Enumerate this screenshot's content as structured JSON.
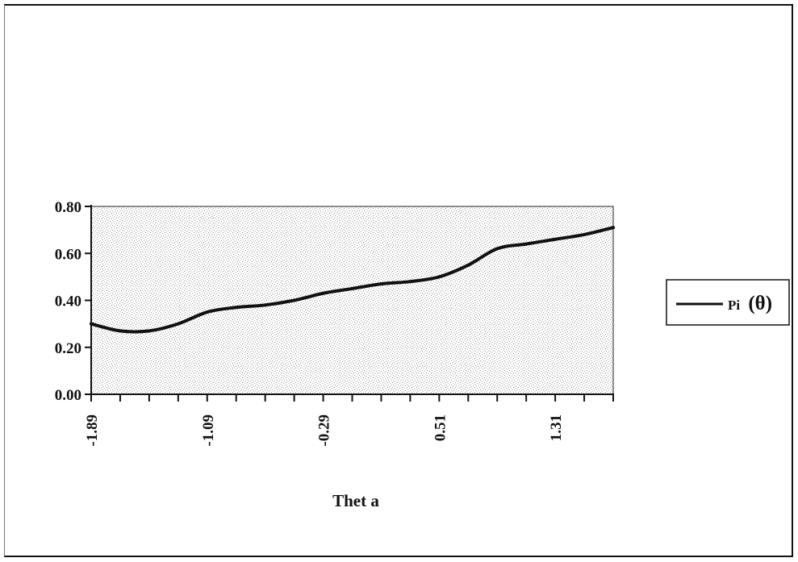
{
  "chart_data": {
    "type": "line",
    "title": "",
    "xlabel": "Thet a",
    "ylabel": "",
    "x": [
      -1.89,
      -1.69,
      -1.49,
      -1.29,
      -1.09,
      -0.89,
      -0.69,
      -0.49,
      -0.29,
      -0.09,
      0.11,
      0.31,
      0.51,
      0.71,
      0.91,
      1.11,
      1.31,
      1.51,
      1.71
    ],
    "x_tick_labels": [
      "-1.89",
      "-1.09",
      "-0.29",
      "0.51",
      "1.31"
    ],
    "y_tick_labels": [
      "0.80",
      "0.60",
      "0.40",
      "0.20",
      "0.00"
    ],
    "ylim": [
      0,
      0.8
    ],
    "series": [
      {
        "name": "Pi (θ)",
        "values": [
          0.3,
          0.27,
          0.27,
          0.3,
          0.35,
          0.37,
          0.38,
          0.4,
          0.43,
          0.45,
          0.47,
          0.48,
          0.5,
          0.55,
          0.62,
          0.64,
          0.66,
          0.68,
          0.71
        ]
      }
    ],
    "legend": {
      "position": "right",
      "label_prefix": "Pi",
      "label_symbol": "(θ)"
    },
    "grid": false,
    "background": "stippled gray"
  }
}
